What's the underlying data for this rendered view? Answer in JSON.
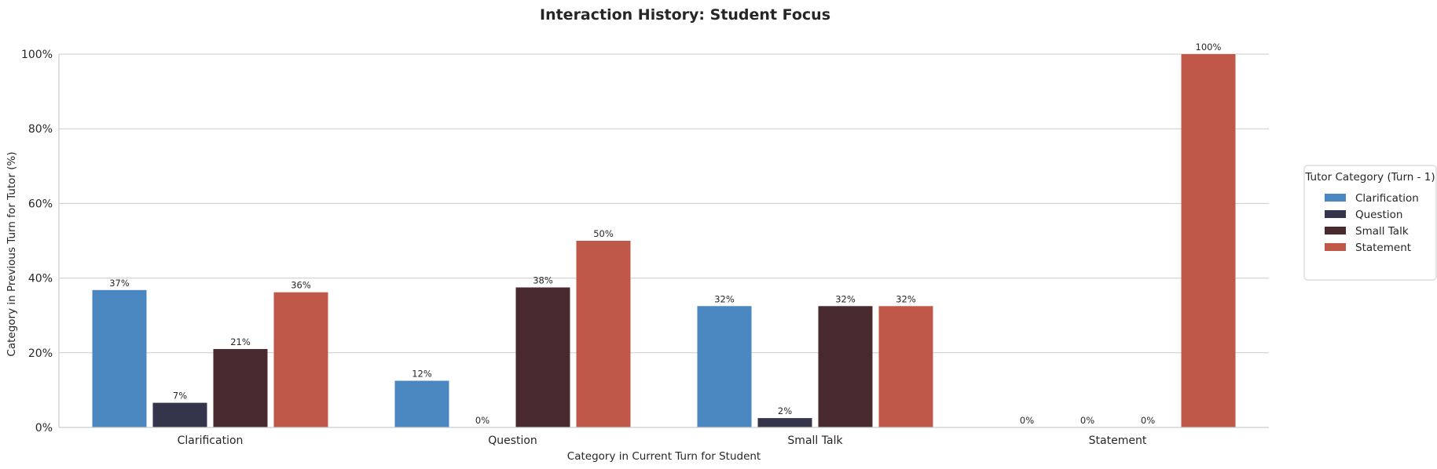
{
  "chart_data": {
    "type": "bar",
    "title": "Interaction History: Student Focus",
    "xlabel": "Category in Current Turn for Student",
    "ylabel": "Category in Previous Turn for Tutor (%)",
    "categories": [
      "Clarification",
      "Question",
      "Small Talk",
      "Statement"
    ],
    "ylim": [
      0,
      100
    ],
    "yticks": [
      0,
      20,
      40,
      60,
      80,
      100
    ],
    "ytick_labels": [
      "0%",
      "20%",
      "40%",
      "60%",
      "80%",
      "100%"
    ],
    "grid": "horizontal",
    "legend": {
      "title": "Tutor Category (Turn - 1)",
      "placement": "right",
      "entries": [
        "Clarification",
        "Question",
        "Small Talk",
        "Statement"
      ]
    },
    "series": [
      {
        "name": "Clarification",
        "color": "#4a86c0",
        "values": [
          36.8,
          12.5,
          32.5,
          0
        ],
        "labels": [
          "37%",
          "12%",
          "32%",
          "0%"
        ]
      },
      {
        "name": "Question",
        "color": "#34344a",
        "values": [
          6.6,
          0,
          2.5,
          0
        ],
        "labels": [
          "7%",
          "0%",
          "2%",
          "0%"
        ]
      },
      {
        "name": "Small Talk",
        "color": "#482a2e",
        "values": [
          21.0,
          37.5,
          32.5,
          0
        ],
        "labels": [
          "21%",
          "38%",
          "32%",
          "0%"
        ]
      },
      {
        "name": "Statement",
        "color": "#c0584a",
        "values": [
          36.2,
          50.0,
          32.5,
          100
        ],
        "labels": [
          "36%",
          "50%",
          "32%",
          "100%"
        ]
      }
    ]
  }
}
